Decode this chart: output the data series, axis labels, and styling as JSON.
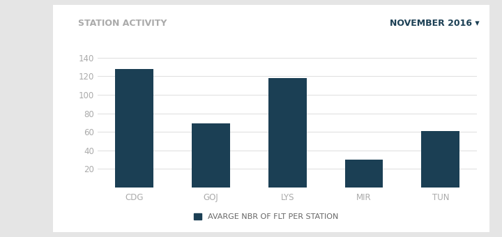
{
  "categories": [
    "CDG",
    "GOJ",
    "LYS",
    "MIR",
    "TUN"
  ],
  "values": [
    128,
    69,
    118,
    30,
    61
  ],
  "bar_color": "#1b3f54",
  "title": "STATION ACTIVITY",
  "subtitle": "NOVEMBER 2016 ▾",
  "legend_label": "AVARGE NBR OF FLT PER STATION",
  "ylim": [
    0,
    150
  ],
  "yticks": [
    20,
    40,
    60,
    80,
    100,
    120,
    140
  ],
  "background_color": "#ffffff",
  "outer_background": "#e5e5e5",
  "card_background": "#ffffff",
  "title_color": "#aaaaaa",
  "subtitle_color": "#1b3f54",
  "tick_color": "#aaaaaa",
  "legend_color": "#666666",
  "grid_color": "#dddddd",
  "title_fontsize": 9,
  "subtitle_fontsize": 9,
  "legend_fontsize": 8,
  "tick_fontsize": 8.5,
  "bar_width": 0.5
}
